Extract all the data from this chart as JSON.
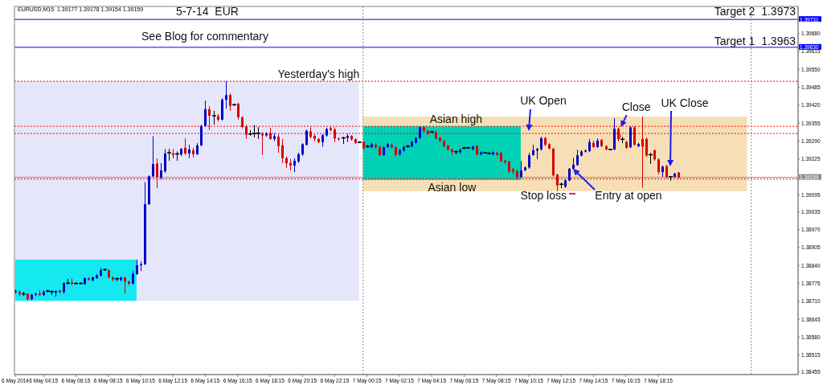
{
  "chart_data": {
    "type": "candlestick",
    "title": "EURUSD,M15  1.39177 1.39178 1.39154 1.39159",
    "x": [
      "2014-05-06T02:30",
      "2014-05-06T02:45",
      "2014-05-06T03:00",
      "2014-05-06T03:15",
      "2014-05-06T03:30",
      "2014-05-06T03:45",
      "2014-05-06T04:00",
      "2014-05-06T04:15",
      "2014-05-06T04:30",
      "2014-05-06T04:45",
      "2014-05-06T05:00",
      "2014-05-06T05:15",
      "2014-05-06T05:30",
      "2014-05-06T05:45",
      "2014-05-06T06:00",
      "2014-05-06T06:15",
      "2014-05-06T06:30",
      "2014-05-06T06:45",
      "2014-05-06T07:00",
      "2014-05-06T07:15",
      "2014-05-06T07:30",
      "2014-05-06T07:45",
      "2014-05-06T08:00",
      "2014-05-06T08:15",
      "2014-05-06T08:30",
      "2014-05-06T08:45",
      "2014-05-06T09:00",
      "2014-05-06T09:15",
      "2014-05-06T09:30",
      "2014-05-06T09:45",
      "2014-05-06T10:00",
      "2014-05-06T10:15",
      "2014-05-06T10:30",
      "2014-05-06T10:45",
      "2014-05-06T11:00",
      "2014-05-06T11:15",
      "2014-05-06T11:30",
      "2014-05-06T11:45",
      "2014-05-06T12:00",
      "2014-05-06T12:15",
      "2014-05-06T12:30",
      "2014-05-06T12:45",
      "2014-05-06T13:00",
      "2014-05-06T13:15",
      "2014-05-06T13:30",
      "2014-05-06T13:45",
      "2014-05-06T14:00",
      "2014-05-06T14:15",
      "2014-05-06T14:30",
      "2014-05-06T14:45",
      "2014-05-06T15:00",
      "2014-05-06T15:15",
      "2014-05-06T15:30",
      "2014-05-06T15:45",
      "2014-05-06T16:00",
      "2014-05-06T16:15",
      "2014-05-06T16:30",
      "2014-05-06T16:45",
      "2014-05-06T17:00",
      "2014-05-06T17:15",
      "2014-05-06T17:30",
      "2014-05-06T17:45",
      "2014-05-06T18:00",
      "2014-05-06T18:15",
      "2014-05-06T18:30",
      "2014-05-06T18:45",
      "2014-05-06T19:00",
      "2014-05-06T19:15",
      "2014-05-06T19:30",
      "2014-05-06T19:45",
      "2014-05-06T20:00",
      "2014-05-06T20:15",
      "2014-05-06T20:30",
      "2014-05-06T20:45",
      "2014-05-06T21:00",
      "2014-05-06T21:15",
      "2014-05-06T21:30",
      "2014-05-06T21:45",
      "2014-05-06T22:00",
      "2014-05-06T22:15",
      "2014-05-06T22:30",
      "2014-05-06T22:45",
      "2014-05-06T23:00",
      "2014-05-06T23:15",
      "2014-05-06T23:30",
      "2014-05-06T23:45",
      "2014-05-07T00:00",
      "2014-05-07T00:15",
      "2014-05-07T00:30",
      "2014-05-07T00:45",
      "2014-05-07T01:00",
      "2014-05-07T01:15",
      "2014-05-07T01:30",
      "2014-05-07T01:45",
      "2014-05-07T02:00",
      "2014-05-07T02:15",
      "2014-05-07T02:30",
      "2014-05-07T02:45",
      "2014-05-07T03:00",
      "2014-05-07T03:15",
      "2014-05-07T03:30",
      "2014-05-07T03:45",
      "2014-05-07T04:00",
      "2014-05-07T04:15",
      "2014-05-07T04:30",
      "2014-05-07T04:45",
      "2014-05-07T05:00",
      "2014-05-07T05:15",
      "2014-05-07T05:30",
      "2014-05-07T05:45",
      "2014-05-07T06:00",
      "2014-05-07T06:15",
      "2014-05-07T06:30",
      "2014-05-07T06:45",
      "2014-05-07T07:00",
      "2014-05-07T07:15",
      "2014-05-07T07:30",
      "2014-05-07T07:45",
      "2014-05-07T08:00",
      "2014-05-07T08:15",
      "2014-05-07T08:30",
      "2014-05-07T08:45",
      "2014-05-07T09:00",
      "2014-05-07T09:15",
      "2014-05-07T09:30",
      "2014-05-07T09:45",
      "2014-05-07T10:00",
      "2014-05-07T10:15",
      "2014-05-07T10:30",
      "2014-05-07T10:45",
      "2014-05-07T11:00",
      "2014-05-07T11:15",
      "2014-05-07T11:30",
      "2014-05-07T11:45",
      "2014-05-07T12:00",
      "2014-05-07T12:15",
      "2014-05-07T12:30",
      "2014-05-07T12:45",
      "2014-05-07T13:00",
      "2014-05-07T13:15",
      "2014-05-07T13:30",
      "2014-05-07T13:45",
      "2014-05-07T14:00",
      "2014-05-07T14:15",
      "2014-05-07T14:30",
      "2014-05-07T14:45",
      "2014-05-07T15:00",
      "2014-05-07T15:15",
      "2014-05-07T15:30",
      "2014-05-07T15:45",
      "2014-05-07T16:00",
      "2014-05-07T16:15",
      "2014-05-07T16:30",
      "2014-05-07T16:45",
      "2014-05-07T17:00",
      "2014-05-07T17:15",
      "2014-05-07T17:30",
      "2014-05-07T17:45",
      "2014-05-07T18:00",
      "2014-05-07T18:15",
      "2014-05-07T18:30",
      "2014-05-07T18:45",
      "2014-05-07T19:00",
      "2014-05-07T19:15",
      "2014-05-07T19:30"
    ],
    "ohlc": [
      [
        1.38744,
        1.38753,
        1.38738,
        1.38747
      ],
      [
        1.38745,
        1.3875,
        1.38728,
        1.38737
      ],
      [
        1.38737,
        1.38745,
        1.3873,
        1.38737
      ],
      [
        1.38737,
        1.3874,
        1.38712,
        1.38718
      ],
      [
        1.38718,
        1.38737,
        1.38715,
        1.38734
      ],
      [
        1.38734,
        1.38742,
        1.3873,
        1.38738
      ],
      [
        1.38738,
        1.38751,
        1.3873,
        1.38733
      ],
      [
        1.38733,
        1.3875,
        1.3873,
        1.38745
      ],
      [
        1.38747,
        1.38753,
        1.38742,
        1.38747
      ],
      [
        1.38745,
        1.3875,
        1.38733,
        1.38745
      ],
      [
        1.38741,
        1.3875,
        1.38727,
        1.38747
      ],
      [
        1.38749,
        1.38752,
        1.38738,
        1.38744
      ],
      [
        1.38744,
        1.38779,
        1.38738,
        1.38776
      ],
      [
        1.38776,
        1.38792,
        1.3877,
        1.38776
      ],
      [
        1.38778,
        1.38792,
        1.38768,
        1.38773
      ],
      [
        1.38775,
        1.38779,
        1.38771,
        1.38775
      ],
      [
        1.38775,
        1.38779,
        1.38771,
        1.38775
      ],
      [
        1.38773,
        1.38797,
        1.3877,
        1.38794
      ],
      [
        1.38794,
        1.38797,
        1.38785,
        1.38788
      ],
      [
        1.38786,
        1.388,
        1.38783,
        1.38797
      ],
      [
        1.38794,
        1.38808,
        1.38791,
        1.38805
      ],
      [
        1.38803,
        1.38832,
        1.388,
        1.38823
      ],
      [
        1.38825,
        1.38829,
        1.3882,
        1.38825
      ],
      [
        1.38823,
        1.38826,
        1.38794,
        1.38797
      ],
      [
        1.38797,
        1.388,
        1.38783,
        1.38789
      ],
      [
        1.38792,
        1.38797,
        1.38783,
        1.38792
      ],
      [
        1.38788,
        1.388,
        1.38783,
        1.38796
      ],
      [
        1.38796,
        1.388,
        1.38738,
        1.38782
      ],
      [
        1.38782,
        1.38785,
        1.38768,
        1.38774
      ],
      [
        1.38774,
        1.3882,
        1.38771,
        1.38809
      ],
      [
        1.38809,
        1.38861,
        1.38806,
        1.38841
      ],
      [
        1.38841,
        1.38855,
        1.3882,
        1.38845
      ],
      [
        1.38845,
        1.39142,
        1.38841,
        1.39062
      ],
      [
        1.39062,
        1.39166,
        1.39059,
        1.39163
      ],
      [
        1.39163,
        1.39308,
        1.3916,
        1.39207
      ],
      [
        1.39209,
        1.39228,
        1.3912,
        1.39161
      ],
      [
        1.39158,
        1.39211,
        1.39152,
        1.39184
      ],
      [
        1.39181,
        1.39262,
        1.39175,
        1.39245
      ],
      [
        1.39248,
        1.39262,
        1.39219,
        1.39248
      ],
      [
        1.39246,
        1.39262,
        1.39228,
        1.3924
      ],
      [
        1.39244,
        1.39253,
        1.39219,
        1.39244
      ],
      [
        1.39242,
        1.39265,
        1.39236,
        1.39262
      ],
      [
        1.39266,
        1.393,
        1.3924,
        1.39246
      ],
      [
        1.39246,
        1.39277,
        1.39229,
        1.3926
      ],
      [
        1.39257,
        1.39266,
        1.39231,
        1.39243
      ],
      [
        1.39243,
        1.39283,
        1.3924,
        1.39275
      ],
      [
        1.39275,
        1.3935,
        1.39272,
        1.39345
      ],
      [
        1.39345,
        1.39437,
        1.39342,
        1.39406
      ],
      [
        1.39406,
        1.39417,
        1.3933,
        1.39382
      ],
      [
        1.39382,
        1.394,
        1.3935,
        1.39382
      ],
      [
        1.3938,
        1.39388,
        1.3936,
        1.39368
      ],
      [
        1.39368,
        1.39446,
        1.39364,
        1.3944
      ],
      [
        1.3944,
        1.39507,
        1.39408,
        1.39457
      ],
      [
        1.39457,
        1.39463,
        1.394,
        1.39418
      ],
      [
        1.39422,
        1.39426,
        1.39418,
        1.39422
      ],
      [
        1.39425,
        1.3943,
        1.39368,
        1.39377
      ],
      [
        1.39376,
        1.3938,
        1.39336,
        1.39342
      ],
      [
        1.39343,
        1.39348,
        1.39298,
        1.39313
      ],
      [
        1.39316,
        1.3933,
        1.3931,
        1.39316
      ],
      [
        1.39318,
        1.39348,
        1.39304,
        1.39318
      ],
      [
        1.39319,
        1.39341,
        1.39298,
        1.39319
      ],
      [
        1.39319,
        1.39322,
        1.3924,
        1.39311
      ],
      [
        1.39311,
        1.39322,
        1.39306,
        1.39319
      ],
      [
        1.39319,
        1.39339,
        1.39295,
        1.39298
      ],
      [
        1.39298,
        1.39319,
        1.3929,
        1.39308
      ],
      [
        1.39306,
        1.39315,
        1.39248,
        1.39272
      ],
      [
        1.39275,
        1.39298,
        1.39211,
        1.39229
      ],
      [
        1.39229,
        1.39234,
        1.39193,
        1.3921
      ],
      [
        1.39211,
        1.39225,
        1.39184,
        1.39202
      ],
      [
        1.39202,
        1.39228,
        1.39178,
        1.39219
      ],
      [
        1.39217,
        1.39248,
        1.39211,
        1.39243
      ],
      [
        1.39242,
        1.39283,
        1.39237,
        1.39279
      ],
      [
        1.39277,
        1.39331,
        1.39274,
        1.39328
      ],
      [
        1.39325,
        1.3934,
        1.393,
        1.39306
      ],
      [
        1.39309,
        1.39315,
        1.3929,
        1.39298
      ],
      [
        1.39298,
        1.39301,
        1.39283,
        1.39287
      ],
      [
        1.39287,
        1.39316,
        1.3927,
        1.39312
      ],
      [
        1.39311,
        1.39339,
        1.39306,
        1.39334
      ],
      [
        1.39337,
        1.39345,
        1.39326,
        1.3933
      ],
      [
        1.39332,
        1.3934,
        1.39287,
        1.393
      ],
      [
        1.393,
        1.39304,
        1.39292,
        1.39297
      ],
      [
        1.39302,
        1.39306,
        1.3928,
        1.39302
      ],
      [
        1.39302,
        1.39316,
        1.39287,
        1.39309
      ],
      [
        1.39309,
        1.39312,
        1.39292,
        1.39297
      ],
      [
        1.39297,
        1.393,
        1.3928,
        1.39284
      ],
      [
        1.39286,
        1.3929,
        1.39283,
        1.39286
      ],
      [
        1.39287,
        1.3929,
        1.39257,
        1.39265
      ],
      [
        1.39271,
        1.39277,
        1.39266,
        1.39271
      ],
      [
        1.39268,
        1.39283,
        1.39265,
        1.39279
      ],
      [
        1.39277,
        1.39283,
        1.39262,
        1.39268
      ],
      [
        1.39269,
        1.39274,
        1.39237,
        1.3924
      ],
      [
        1.3924,
        1.39272,
        1.39237,
        1.39268
      ],
      [
        1.39269,
        1.39283,
        1.39266,
        1.39279
      ],
      [
        1.39277,
        1.39283,
        1.39265,
        1.39268
      ],
      [
        1.39268,
        1.39272,
        1.39237,
        1.3924
      ],
      [
        1.39242,
        1.39262,
        1.39237,
        1.39258
      ],
      [
        1.39256,
        1.39274,
        1.39253,
        1.39269
      ],
      [
        1.39271,
        1.39277,
        1.39266,
        1.39271
      ],
      [
        1.39271,
        1.39292,
        1.39268,
        1.39287
      ],
      [
        1.39285,
        1.39306,
        1.39282,
        1.39301
      ],
      [
        1.39301,
        1.39344,
        1.39298,
        1.3934
      ],
      [
        1.3934,
        1.39344,
        1.39322,
        1.39328
      ],
      [
        1.39328,
        1.39331,
        1.39313,
        1.39318
      ],
      [
        1.39324,
        1.39328,
        1.39319,
        1.39324
      ],
      [
        1.39322,
        1.39328,
        1.39297,
        1.393
      ],
      [
        1.39302,
        1.39306,
        1.39287,
        1.39291
      ],
      [
        1.39291,
        1.39295,
        1.39269,
        1.39272
      ],
      [
        1.39273,
        1.39277,
        1.39256,
        1.39259
      ],
      [
        1.3926,
        1.39263,
        1.3924,
        1.39252
      ],
      [
        1.39252,
        1.39256,
        1.39243,
        1.39252
      ],
      [
        1.3925,
        1.39263,
        1.39246,
        1.3926
      ],
      [
        1.39265,
        1.39269,
        1.39261,
        1.39265
      ],
      [
        1.39266,
        1.39269,
        1.39262,
        1.39266
      ],
      [
        1.3926,
        1.39274,
        1.39257,
        1.39271
      ],
      [
        1.39273,
        1.39276,
        1.39239,
        1.39242
      ],
      [
        1.39242,
        1.39253,
        1.39239,
        1.3925
      ],
      [
        1.39248,
        1.39251,
        1.39245,
        1.39248
      ],
      [
        1.39246,
        1.3925,
        1.39243,
        1.39246
      ],
      [
        1.39242,
        1.39253,
        1.39239,
        1.3925
      ],
      [
        1.39248,
        1.39251,
        1.39237,
        1.3924
      ],
      [
        1.39248,
        1.39251,
        1.39214,
        1.39217
      ],
      [
        1.39219,
        1.39222,
        1.39207,
        1.39213
      ],
      [
        1.39216,
        1.39219,
        1.39176,
        1.3918
      ],
      [
        1.39188,
        1.39193,
        1.3917,
        1.3918
      ],
      [
        1.39182,
        1.39186,
        1.3915,
        1.39159
      ],
      [
        1.39161,
        1.39219,
        1.39155,
        1.39184
      ],
      [
        1.39185,
        1.39199,
        1.39182,
        1.39195
      ],
      [
        1.39195,
        1.39248,
        1.3919,
        1.39239
      ],
      [
        1.3924,
        1.39277,
        1.39237,
        1.39257
      ],
      [
        1.39256,
        1.39266,
        1.39225,
        1.39262
      ],
      [
        1.3926,
        1.39306,
        1.39256,
        1.39301
      ],
      [
        1.39301,
        1.39306,
        1.39272,
        1.39277
      ],
      [
        1.39279,
        1.39282,
        1.3926,
        1.39263
      ],
      [
        1.39263,
        1.39266,
        1.39163,
        1.39166
      ],
      [
        1.39169,
        1.39172,
        1.39109,
        1.3913
      ],
      [
        1.39134,
        1.3914,
        1.3912,
        1.39134
      ],
      [
        1.39125,
        1.39152,
        1.39121,
        1.39148
      ],
      [
        1.39148,
        1.39193,
        1.39145,
        1.3919
      ],
      [
        1.3919,
        1.3923,
        1.39187,
        1.39205
      ],
      [
        1.39204,
        1.39259,
        1.39201,
        1.39239
      ],
      [
        1.39238,
        1.39257,
        1.39235,
        1.39253
      ],
      [
        1.39252,
        1.3926,
        1.39249,
        1.39256
      ],
      [
        1.39254,
        1.39298,
        1.39251,
        1.39287
      ],
      [
        1.39284,
        1.39292,
        1.39266,
        1.39269
      ],
      [
        1.39269,
        1.393,
        1.39266,
        1.39292
      ],
      [
        1.39294,
        1.39298,
        1.39269,
        1.39272
      ],
      [
        1.39272,
        1.39275,
        1.39257,
        1.3926
      ],
      [
        1.3926,
        1.39263,
        1.39257,
        1.3926
      ],
      [
        1.3926,
        1.39373,
        1.39257,
        1.39335
      ],
      [
        1.39335,
        1.3934,
        1.3929,
        1.39297
      ],
      [
        1.39297,
        1.39306,
        1.39283,
        1.39297
      ],
      [
        1.39287,
        1.39292,
        1.39263,
        1.39266
      ],
      [
        1.39268,
        1.39344,
        1.39265,
        1.3934
      ],
      [
        1.3934,
        1.39344,
        1.39274,
        1.39277
      ],
      [
        1.39272,
        1.39284,
        1.39269,
        1.3928
      ],
      [
        1.39298,
        1.39379,
        1.39122,
        1.39271
      ],
      [
        1.39298,
        1.39304,
        1.39234,
        1.39238
      ],
      [
        1.39241,
        1.39248,
        1.39208,
        1.39241
      ],
      [
        1.39257,
        1.3926,
        1.39219,
        1.39224
      ],
      [
        1.39224,
        1.39228,
        1.3917,
        1.39178
      ],
      [
        1.39178,
        1.39202,
        1.39161,
        1.39198
      ],
      [
        1.392,
        1.39204,
        1.39155,
        1.39161
      ],
      [
        1.39161,
        1.39164,
        1.39147,
        1.39161
      ],
      [
        1.39161,
        1.39176,
        1.39158,
        1.39173
      ],
      [
        1.39177,
        1.39178,
        1.39154,
        1.39159
      ]
    ],
    "colors": [
      "#0000c8",
      "#d50000",
      "#000000",
      "#d50000",
      "#0000c8",
      "#0000c8",
      "#d50000",
      "#0000c8",
      "#000000",
      "#000000",
      "#0000c8",
      "#d50000",
      "#0000c8",
      "#000000",
      "#d50000",
      "#000000",
      "#000000",
      "#0000c8",
      "#d50000",
      "#0000c8",
      "#0000c8",
      "#0000c8",
      "#000000",
      "#d50000",
      "#d50000",
      "#000000",
      "#0000c8",
      "#d50000",
      "#d50000",
      "#0000c8",
      "#0000c8",
      "#0000c8",
      "#0000c8",
      "#0000c8",
      "#0000c8",
      "#d50000",
      "#0000c8",
      "#0000c8",
      "#000000",
      "#d50000",
      "#000000",
      "#0000c8",
      "#d50000",
      "#0000c8",
      "#d50000",
      "#0000c8",
      "#0000c8",
      "#0000c8",
      "#d50000",
      "#000000",
      "#d50000",
      "#0000c8",
      "#0000c8",
      "#d50000",
      "#000000",
      "#d50000",
      "#d50000",
      "#d50000",
      "#000000",
      "#000000",
      "#000000",
      "#d50000",
      "#0000c8",
      "#d50000",
      "#0000c8",
      "#d50000",
      "#d50000",
      "#d50000",
      "#d50000",
      "#0000c8",
      "#0000c8",
      "#0000c8",
      "#0000c8",
      "#d50000",
      "#d50000",
      "#d50000",
      "#0000c8",
      "#0000c8",
      "#d50000",
      "#d50000",
      "#d50000",
      "#000000",
      "#0000c8",
      "#d50000",
      "#d50000",
      "#000000",
      "#d50000",
      "#000000",
      "#0000c8",
      "#d50000",
      "#d50000",
      "#0000c8",
      "#0000c8",
      "#d50000",
      "#d50000",
      "#0000c8",
      "#0000c8",
      "#000000",
      "#0000c8",
      "#0000c8",
      "#0000c8",
      "#d50000",
      "#d50000",
      "#000000",
      "#d50000",
      "#d50000",
      "#d50000",
      "#d50000",
      "#d50000",
      "#000000",
      "#0000c8",
      "#000000",
      "#000000",
      "#0000c8",
      "#d50000",
      "#0000c8",
      "#000000",
      "#000000",
      "#0000c8",
      "#d50000",
      "#d50000",
      "#d50000",
      "#d50000",
      "#d50000",
      "#d50000",
      "#0000c8",
      "#0000c8",
      "#0000c8",
      "#0000c8",
      "#0000c8",
      "#0000c8",
      "#d50000",
      "#d50000",
      "#d50000",
      "#d50000",
      "#000000",
      "#0000c8",
      "#0000c8",
      "#0000c8",
      "#0000c8",
      "#0000c8",
      "#0000c8",
      "#0000c8",
      "#d50000",
      "#0000c8",
      "#d50000",
      "#d50000",
      "#000000",
      "#0000c8",
      "#d50000",
      "#000000",
      "#d50000",
      "#0000c8",
      "#d50000",
      "#0000c8",
      "#d50000",
      "#d50000",
      "#000000",
      "#d50000",
      "#d50000",
      "#0000c8",
      "#d50000",
      "#000000",
      "#0000c8",
      "#d50000"
    ],
    "xlim": [
      "2014-05-06T02:27",
      "2014-05-08T02:54"
    ],
    "xticks": [
      {
        "value": "2014-05-06T02:30",
        "label": "6 May 2014"
      },
      {
        "value": "2014-05-06T04:15",
        "label": "6 May 04:15"
      },
      {
        "value": "2014-05-06T06:15",
        "label": "6 May 06:15"
      },
      {
        "value": "2014-05-06T08:15",
        "label": "6 May 08:15"
      },
      {
        "value": "2014-05-06T10:15",
        "label": "6 May 10:15"
      },
      {
        "value": "2014-05-06T12:15",
        "label": "6 May 12:15"
      },
      {
        "value": "2014-05-06T14:15",
        "label": "6 May 14:15"
      },
      {
        "value": "2014-05-06T16:15",
        "label": "6 May 16:15"
      },
      {
        "value": "2014-05-06T18:15",
        "label": "6 May 18:15"
      },
      {
        "value": "2014-05-06T20:15",
        "label": "6 May 20:15"
      },
      {
        "value": "2014-05-06T22:15",
        "label": "6 May 22:15"
      },
      {
        "value": "2014-05-07T00:15",
        "label": "7 May 00:15"
      },
      {
        "value": "2014-05-07T02:15",
        "label": "7 May 02:15"
      },
      {
        "value": "2014-05-07T04:15",
        "label": "7 May 04:15"
      },
      {
        "value": "2014-05-07T06:15",
        "label": "7 May 06:15"
      },
      {
        "value": "2014-05-07T08:15",
        "label": "7 May 08:15"
      },
      {
        "value": "2014-05-07T10:15",
        "label": "7 May 10:15"
      },
      {
        "value": "2014-05-07T12:15",
        "label": "7 May 12:15"
      },
      {
        "value": "2014-05-07T14:15",
        "label": "7 May 14:15"
      },
      {
        "value": "2014-05-07T16:15",
        "label": "7 May 16:15"
      },
      {
        "value": "2014-05-07T18:15",
        "label": "7 May 18:15"
      }
    ],
    "ylim": [
      1.38445,
      1.39778
    ],
    "yticks": [
      {
        "value": 1.3968,
        "label": "1.39680"
      },
      {
        "value": 1.39615,
        "label": "1.39615"
      },
      {
        "value": 1.3955,
        "label": "1.39550"
      },
      {
        "value": 1.39485,
        "label": "1.39485"
      },
      {
        "value": 1.3942,
        "label": "1.39420"
      },
      {
        "value": 1.39355,
        "label": "1.39355"
      },
      {
        "value": 1.3929,
        "label": "1.39290"
      },
      {
        "value": 1.39225,
        "label": "1.39225"
      },
      {
        "value": 1.39095,
        "label": "1.39095"
      },
      {
        "value": 1.39035,
        "label": "1.39035"
      },
      {
        "value": 1.3897,
        "label": "1.38970"
      },
      {
        "value": 1.38905,
        "label": "1.38905"
      },
      {
        "value": 1.3884,
        "label": "1.38840"
      },
      {
        "value": 1.38775,
        "label": "1.38775"
      },
      {
        "value": 1.3871,
        "label": "1.38710"
      },
      {
        "value": 1.38645,
        "label": "1.38645"
      },
      {
        "value": 1.3858,
        "label": "1.38580"
      },
      {
        "value": 1.38515,
        "label": "1.38515"
      },
      {
        "value": 1.38455,
        "label": "1.38455"
      }
    ],
    "bands": [
      {
        "axis": "x",
        "from": "2014-05-06T02:30",
        "to": "2014-05-06T23:45",
        "color": "#e6e6fa"
      },
      {
        "axis": "x",
        "from": "2014-05-06T02:30",
        "to": "2014-05-06T10:00",
        "color": "#14e9f1"
      },
      {
        "axis": "x",
        "from": "2014-05-07T00:00",
        "to": "2014-05-07T23:45",
        "color": "#f6dfb6"
      },
      {
        "axis": "x",
        "from": "2014-05-07T00:00",
        "to": "2014-05-07T09:45",
        "color": "#00d2b6"
      }
    ],
    "ref_lines": [
      {
        "axis": "y",
        "value": 1.39731,
        "color": "#0000ff",
        "line_style": "solid",
        "label": "1.39731"
      },
      {
        "axis": "y",
        "value": 1.3963,
        "color": "#0000ff",
        "line_style": "solid",
        "label": "1.39630"
      },
      {
        "axis": "y",
        "value": 1.39507,
        "color": "#ff0000",
        "line_style": "dotted"
      },
      {
        "axis": "y",
        "value": 1.39344,
        "color": "#ff0000",
        "line_style": "dotted"
      },
      {
        "axis": "y",
        "value": 1.39318,
        "color": "#ff0000",
        "line_style": "dotted"
      },
      {
        "axis": "y",
        "value": 1.39153,
        "color": "#ff0000",
        "line_style": "dotted"
      },
      {
        "axis": "y",
        "value": 1.39159,
        "color": "#8c8c8c",
        "line_style": "solid",
        "label": "1.39159"
      },
      {
        "axis": "x",
        "value": "2014-05-07T00:00",
        "color": "#8c8c8c",
        "line_style": "dotted"
      },
      {
        "axis": "x",
        "value": "2014-05-08T00:00",
        "color": "#8c8c8c",
        "line_style": "dotted"
      }
    ],
    "annotations": [
      "5-7-14  EUR",
      "See Blog for commentary",
      "Target 2  1.3973",
      "Target 1  1.3963",
      {
        "text": "Yesterday's high",
        "x": "2014-05-06T21:15",
        "y": 1.39507
      },
      {
        "text": "Asian high",
        "x": "2014-05-07T05:45",
        "y": 1.39344
      },
      {
        "text": "Asian low",
        "x": "2014-05-07T05:30",
        "y": 1.39153
      },
      {
        "text": "UK Open",
        "x": "2014-05-07T10:15",
        "y": 1.39321
      },
      {
        "text": "Close",
        "x": "2014-05-07T15:30",
        "y": 1.39315
      },
      "UK Close",
      "Entry at open",
      "Stop loss"
    ]
  }
}
